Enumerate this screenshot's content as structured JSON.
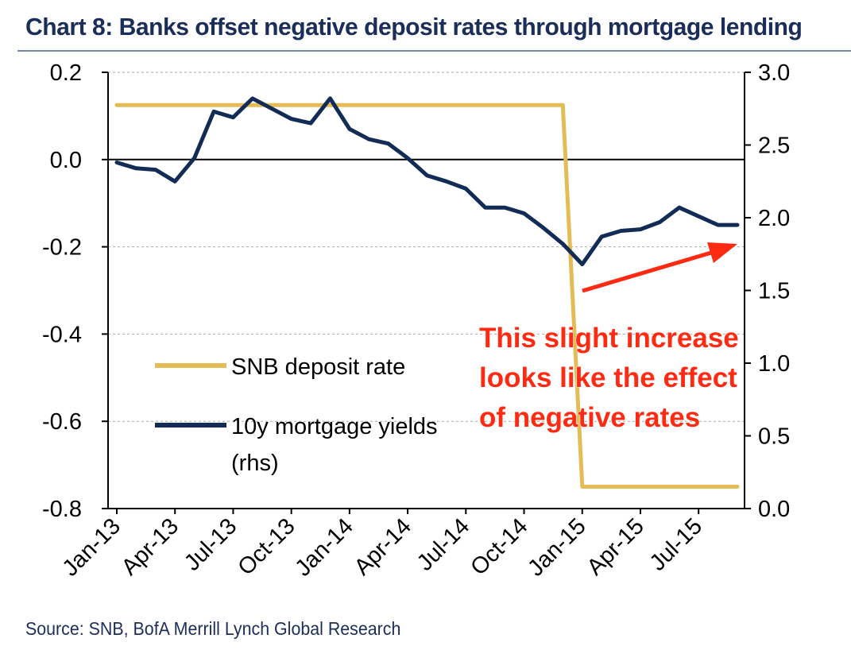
{
  "title": "Chart 8: Banks offset negative deposit rates through mortgage lending",
  "source": "Source: SNB, BofA Merrill Lynch Global Research",
  "annotation": {
    "lines": [
      "This slight increase",
      "looks like the effect",
      "of negative rates"
    ],
    "color": "#ff2a12"
  },
  "colors": {
    "title": "#1b2d59",
    "deposit_rate": "#e3bc55",
    "mortgage_yields": "#132c56",
    "annotation": "#ff2a12"
  },
  "chart_data": {
    "type": "line",
    "x_tick_labels": [
      "Jan-13",
      "Apr-13",
      "Jul-13",
      "Oct-13",
      "Jan-14",
      "Apr-14",
      "Jul-14",
      "Oct-14",
      "Jan-15",
      "Apr-15",
      "Jul-15"
    ],
    "x_count": 33,
    "left_axis": {
      "ylim": [
        -0.8,
        0.2
      ],
      "ticks": [
        "0.2",
        "0.0",
        "-0.2",
        "-0.4",
        "-0.6",
        "-0.8"
      ]
    },
    "right_axis": {
      "ylim": [
        0.0,
        3.0
      ],
      "ticks": [
        "3.0",
        "2.5",
        "2.0",
        "1.5",
        "1.0",
        "0.5",
        "0.0"
      ]
    },
    "grid": true,
    "legend_position": "lower-left",
    "series": [
      {
        "name": "SNB deposit rate",
        "axis": "left",
        "values": [
          0.125,
          0.125,
          0.125,
          0.125,
          0.125,
          0.125,
          0.125,
          0.125,
          0.125,
          0.125,
          0.125,
          0.125,
          0.125,
          0.125,
          0.125,
          0.125,
          0.125,
          0.125,
          0.125,
          0.125,
          0.125,
          0.125,
          0.125,
          0.125,
          -0.75,
          -0.75,
          -0.75,
          -0.75,
          -0.75,
          -0.75,
          -0.75,
          -0.75,
          -0.75
        ]
      },
      {
        "name": "10y mortgage yields (rhs)",
        "legend_lines": [
          "10y mortgage yields",
          "(rhs)"
        ],
        "axis": "right",
        "values": [
          2.38,
          2.34,
          2.33,
          2.25,
          2.41,
          2.73,
          2.69,
          2.82,
          2.75,
          2.68,
          2.65,
          2.82,
          2.61,
          2.54,
          2.51,
          2.41,
          2.29,
          2.25,
          2.2,
          2.07,
          2.07,
          2.03,
          1.93,
          1.82,
          1.68,
          1.87,
          1.91,
          1.92,
          1.97,
          2.07,
          2.01,
          1.95,
          1.95
        ]
      }
    ]
  }
}
